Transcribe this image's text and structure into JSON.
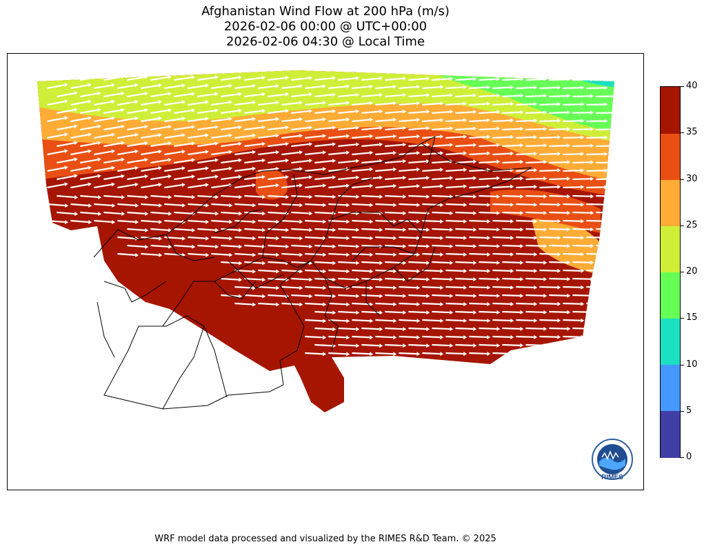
{
  "title": {
    "line1": "Afghanistan Wind Flow at 200 hPa (m/s)",
    "line2": "2026-02-06 00:00 @ UTC+00:00",
    "line3": "2026-02-06 04:30 @ Local Time"
  },
  "colorbar": {
    "ticks": [
      "0",
      "5",
      "10",
      "15",
      "20",
      "25",
      "30",
      "35",
      "40"
    ],
    "levels": [
      {
        "min": 0,
        "max": 5,
        "color": "#3f3fa6"
      },
      {
        "min": 5,
        "max": 10,
        "color": "#4598ff"
      },
      {
        "min": 10,
        "max": 15,
        "color": "#1be0c2"
      },
      {
        "min": 15,
        "max": 20,
        "color": "#66ff55"
      },
      {
        "min": 20,
        "max": 25,
        "color": "#cfee38"
      },
      {
        "min": 25,
        "max": 30,
        "color": "#ffac36"
      },
      {
        "min": 30,
        "max": 35,
        "color": "#e94f12"
      },
      {
        "min": 35,
        "max": 40,
        "color": "#a61500"
      }
    ]
  },
  "logo": {
    "text": "RIMES",
    "icon": "rimes-logo-icon"
  },
  "footer": "WRF model data processed and visualized by the RIMES R&D Team. © 2025"
}
